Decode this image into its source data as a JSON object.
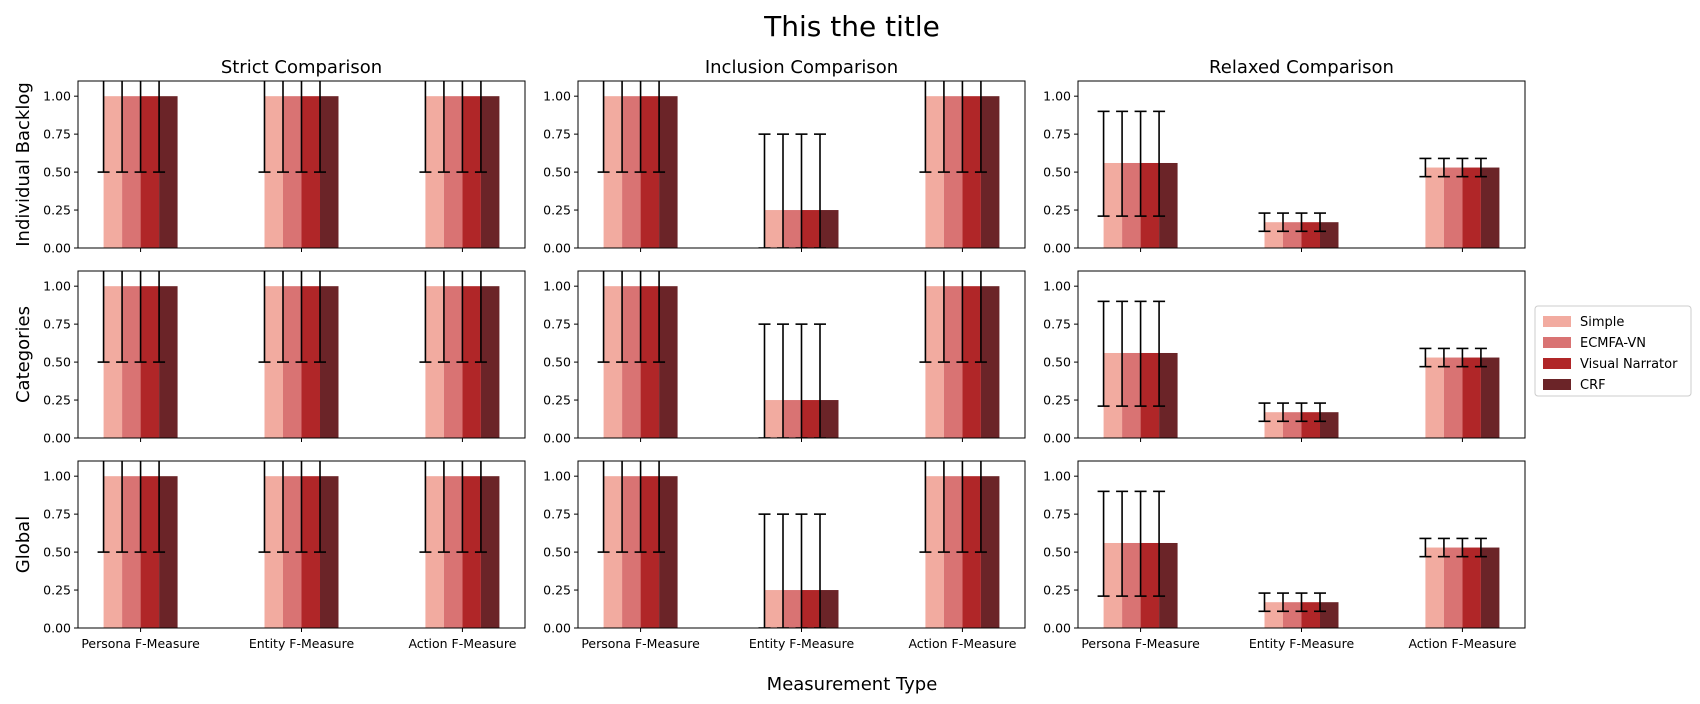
{
  "figure": {
    "title": "This the title",
    "xlabel": "Measurement Type"
  },
  "chart_data": {
    "type": "bar",
    "title": "This the title",
    "xlabel": "Measurement Type",
    "categories": [
      "Persona F-Measure",
      "Entity F-Measure",
      "Action F-Measure"
    ],
    "series_names": [
      "Simple",
      "ECMFA-VN",
      "Visual Narrator",
      "CRF"
    ],
    "series_colors": [
      "#f2aba0",
      "#d97373",
      "#b02628",
      "#6b2428"
    ],
    "ylim": [
      0,
      1.1
    ],
    "yticks": [
      "0.00",
      "0.25",
      "0.50",
      "0.75",
      "1.00"
    ],
    "legend_placement": "right",
    "grid": false,
    "columns": [
      "Strict Comparison",
      "Inclusion Comparison",
      "Relaxed Comparison"
    ],
    "rows": [
      "Individual Backlog",
      "Categories",
      "Global"
    ],
    "panels": [
      {
        "row": "Individual Backlog",
        "column": "Strict Comparison",
        "values": [
          1.0,
          1.0,
          1.0
        ],
        "err_low": [
          0.5,
          0.5,
          0.5
        ],
        "err_high": [
          1.5,
          1.5,
          1.5
        ]
      },
      {
        "row": "Individual Backlog",
        "column": "Inclusion Comparison",
        "values": [
          1.0,
          0.25,
          1.0
        ],
        "err_low": [
          0.5,
          0.0,
          0.5
        ],
        "err_high": [
          1.5,
          0.75,
          1.5
        ]
      },
      {
        "row": "Individual Backlog",
        "column": "Relaxed Comparison",
        "values": [
          0.56,
          0.17,
          0.53
        ],
        "err_low": [
          0.21,
          0.11,
          0.47
        ],
        "err_high": [
          0.9,
          0.23,
          0.59
        ]
      },
      {
        "row": "Categories",
        "column": "Strict Comparison",
        "values": [
          1.0,
          1.0,
          1.0
        ],
        "err_low": [
          0.5,
          0.5,
          0.5
        ],
        "err_high": [
          1.5,
          1.5,
          1.5
        ]
      },
      {
        "row": "Categories",
        "column": "Inclusion Comparison",
        "values": [
          1.0,
          0.25,
          1.0
        ],
        "err_low": [
          0.5,
          0.0,
          0.5
        ],
        "err_high": [
          1.5,
          0.75,
          1.5
        ]
      },
      {
        "row": "Categories",
        "column": "Relaxed Comparison",
        "values": [
          0.56,
          0.17,
          0.53
        ],
        "err_low": [
          0.21,
          0.11,
          0.47
        ],
        "err_high": [
          0.9,
          0.23,
          0.59
        ]
      },
      {
        "row": "Global",
        "column": "Strict Comparison",
        "values": [
          1.0,
          1.0,
          1.0
        ],
        "err_low": [
          0.5,
          0.5,
          0.5
        ],
        "err_high": [
          1.5,
          1.5,
          1.5
        ]
      },
      {
        "row": "Global",
        "column": "Inclusion Comparison",
        "values": [
          1.0,
          0.25,
          1.0
        ],
        "err_low": [
          0.5,
          0.0,
          0.5
        ],
        "err_high": [
          1.5,
          0.75,
          1.5
        ]
      },
      {
        "row": "Global",
        "column": "Relaxed Comparison",
        "values": [
          0.56,
          0.17,
          0.53
        ],
        "err_low": [
          0.21,
          0.11,
          0.47
        ],
        "err_high": [
          0.9,
          0.23,
          0.59
        ]
      }
    ]
  }
}
